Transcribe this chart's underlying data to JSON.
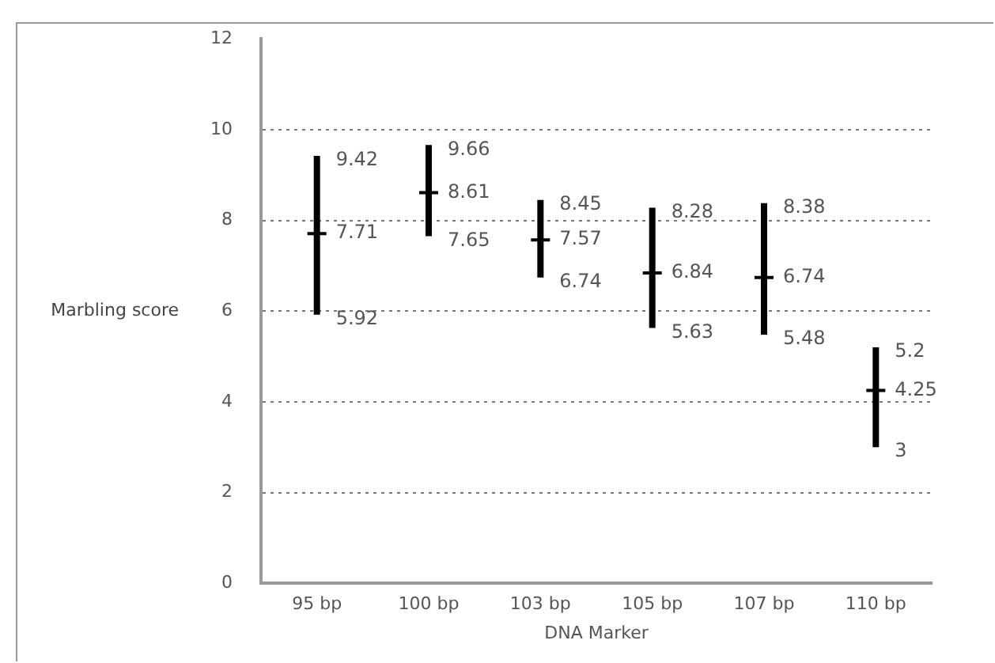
{
  "chart_data": {
    "type": "scatter",
    "xlabel": "DNA Marker",
    "ylabel": "Marbling score",
    "categories": [
      "95 bp",
      "100 bp",
      "103 bp",
      "105 bp",
      "107 bp",
      "110 bp"
    ],
    "values": [
      7.71,
      8.61,
      7.57,
      6.84,
      6.74,
      4.25
    ],
    "errors": [
      [
        5.92,
        9.42
      ],
      [
        7.65,
        9.66
      ],
      [
        6.74,
        8.45
      ],
      [
        5.63,
        8.28
      ],
      [
        5.48,
        8.38
      ],
      [
        3,
        5.2
      ]
    ],
    "annotations": [
      {
        "text": "9.42",
        "x": "95 bp",
        "y": 9.42
      },
      {
        "text": "5.92",
        "x": "95 bp",
        "y": 5.92
      },
      {
        "text": "9.66",
        "x": "100 bp",
        "y": 9.66
      },
      {
        "text": "7.65",
        "x": "100 bp",
        "y": 7.65
      },
      {
        "text": "8.45",
        "x": "103 bp",
        "y": 8.45
      },
      {
        "text": "6.74",
        "x": "103 bp",
        "y": 6.74
      },
      {
        "text": "8.28",
        "x": "105 bp",
        "y": 8.28
      },
      {
        "text": "5.63",
        "x": "105 bp",
        "y": 5.63
      },
      {
        "text": "8.38",
        "x": "107 bp",
        "y": 8.38
      },
      {
        "text": "5.48",
        "x": "107 bp",
        "y": 5.48
      },
      {
        "text": "5.2",
        "x": "110 bp",
        "y": 5.2
      },
      {
        "text": "3",
        "x": "110 bp",
        "y": 3
      }
    ],
    "color": "#000000",
    "marker": "cross",
    "data_labels": true,
    "ylim": [
      0,
      12
    ],
    "yticks": [
      0,
      2,
      4,
      6,
      8,
      10,
      12
    ],
    "grid": "y"
  }
}
